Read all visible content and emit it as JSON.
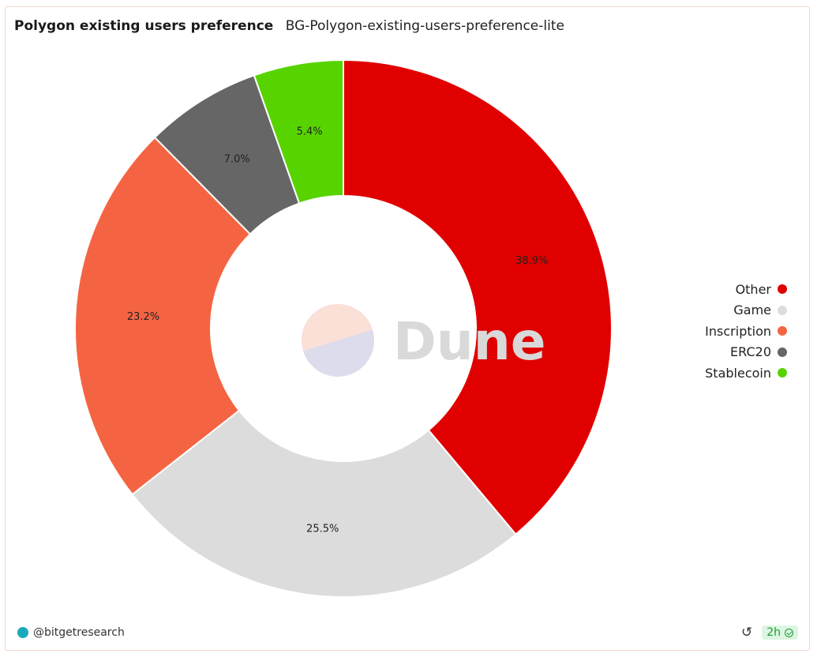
{
  "header": {
    "title": "Polygon existing users preference",
    "subtitle": "BG-Polygon-existing-users-preference-lite"
  },
  "chart_data": {
    "type": "pie",
    "donut": true,
    "categories": [
      "Other",
      "Game",
      "Inscription",
      "ERC20",
      "Stablecoin"
    ],
    "values": [
      38.9,
      25.5,
      23.2,
      7.0,
      5.4
    ],
    "labels": [
      "38.9%",
      "25.5%",
      "23.2%",
      "7.0%",
      "5.4%"
    ],
    "colors": [
      "#e10000",
      "#dcdcdc",
      "#f56442",
      "#666666",
      "#57d400"
    ],
    "legend_position": "right",
    "watermark": "Dune"
  },
  "footer": {
    "account": "@bitgetresearch",
    "refresh_icon": "refresh-icon",
    "age": "2h",
    "status_icon": "check-circle-icon"
  }
}
